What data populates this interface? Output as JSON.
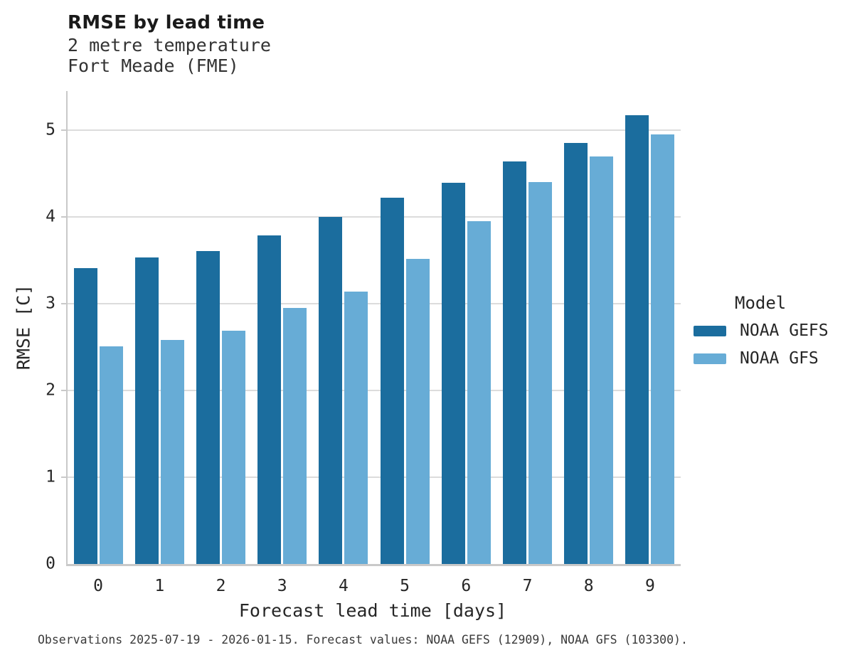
{
  "header": {
    "title": "RMSE by lead time",
    "subtitle_line1": "2 metre temperature",
    "subtitle_line2": "Fort Meade (FME)"
  },
  "chart_data": {
    "type": "bar",
    "title": "RMSE by lead time",
    "subtitle": "2 metre temperature — Fort Meade (FME)",
    "categories": [
      "0",
      "1",
      "2",
      "3",
      "4",
      "5",
      "6",
      "7",
      "8",
      "9"
    ],
    "series": [
      {
        "name": "NOAA GEFS",
        "color": "#1b6d9e",
        "values": [
          3.41,
          3.53,
          3.61,
          3.79,
          4.0,
          4.22,
          4.39,
          4.64,
          4.85,
          5.17
        ]
      },
      {
        "name": "NOAA GFS",
        "color": "#67acd6",
        "values": [
          2.51,
          2.58,
          2.69,
          2.95,
          3.14,
          3.52,
          3.95,
          4.4,
          4.7,
          4.95
        ]
      }
    ],
    "xlabel": "Forecast lead time [days]",
    "ylabel": "RMSE [C]",
    "ylim": [
      0,
      5.45
    ],
    "yticks": [
      0,
      1,
      2,
      3,
      4,
      5
    ],
    "grid": true,
    "legend_position": "right"
  },
  "legend": {
    "title": "Model",
    "entries": [
      {
        "label": "NOAA GEFS",
        "color": "#1b6d9e"
      },
      {
        "label": "NOAA GFS",
        "color": "#67acd6"
      }
    ]
  },
  "footer": {
    "text": "Observations 2025-07-19 - 2026-01-15. Forecast values: NOAA GEFS (12909), NOAA GFS (103300)."
  },
  "colors": {
    "gefs": "#1b6d9e",
    "gfs": "#67acd6",
    "gridline": "#dcdcdc",
    "spine": "#c9c9c9"
  }
}
